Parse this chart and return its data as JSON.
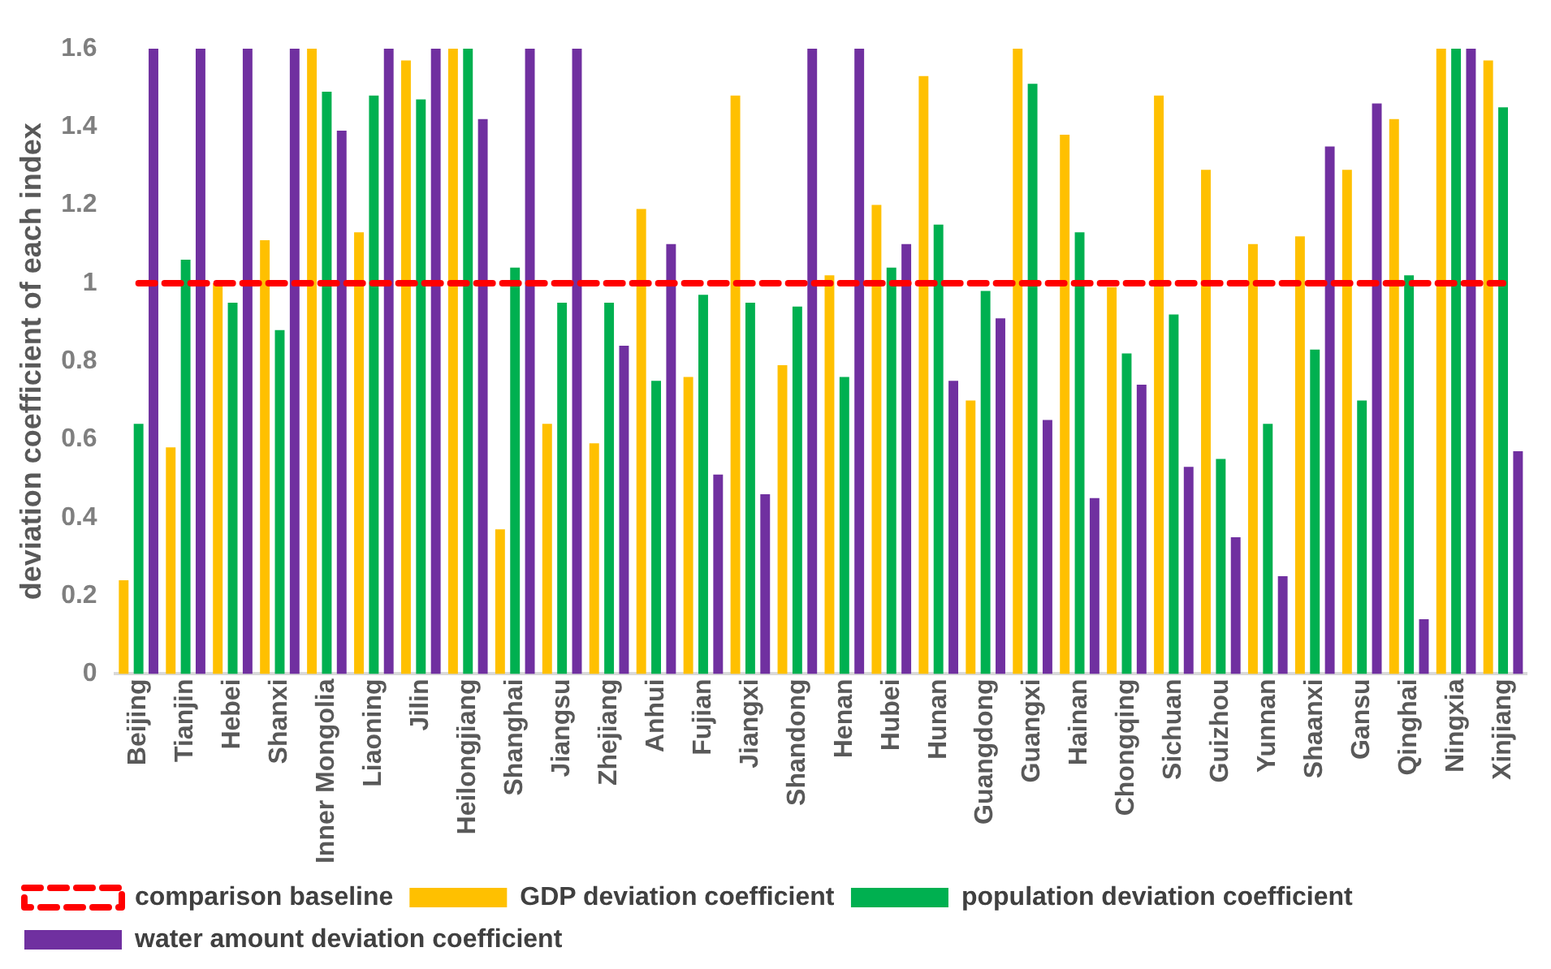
{
  "chart_data": {
    "type": "bar",
    "ylabel": "deviation coefficient of each index",
    "categories": [
      "Beijing",
      "Tianjin",
      "Hebei",
      "Shanxi",
      "Inner Mongolia",
      "Liaoning",
      "Jilin",
      "Heilongjiang",
      "Shanghai",
      "Jiangsu",
      "Zhejiang",
      "Anhui",
      "Fujian",
      "Jiangxi",
      "Shandong",
      "Henan",
      "Hubei",
      "Hunan",
      "Guangdong",
      "Guangxi",
      "Hainan",
      "Chongqing",
      "Sichuan",
      "Guizhou",
      "Yunnan",
      "Shaanxi",
      "Gansu",
      "Qinghai",
      "Ningxia",
      "Xinjiang"
    ],
    "series": [
      {
        "name": "GDP deviation coefficient",
        "color": "#ffc000",
        "values": [
          0.24,
          0.58,
          1.0,
          1.11,
          1.6,
          1.13,
          1.57,
          1.6,
          0.37,
          0.64,
          0.59,
          1.19,
          0.76,
          1.48,
          0.79,
          1.02,
          1.2,
          1.53,
          0.7,
          1.6,
          1.38,
          0.99,
          1.48,
          1.29,
          1.1,
          1.12,
          1.29,
          1.42,
          1.6,
          1.57
        ]
      },
      {
        "name": "population deviation coefficient",
        "color": "#00b050",
        "values": [
          0.64,
          1.06,
          0.95,
          0.88,
          1.49,
          1.48,
          1.47,
          1.6,
          1.04,
          0.95,
          0.95,
          0.75,
          0.97,
          0.95,
          0.94,
          0.76,
          1.04,
          1.15,
          0.98,
          1.51,
          1.13,
          0.82,
          0.92,
          0.55,
          0.64,
          0.83,
          0.7,
          1.02,
          1.6,
          1.45
        ]
      },
      {
        "name": "water amount deviation coefficient",
        "color": "#7030a0",
        "values": [
          1.6,
          1.6,
          1.6,
          1.6,
          1.39,
          1.6,
          1.6,
          1.42,
          1.6,
          1.6,
          0.84,
          1.1,
          0.51,
          0.46,
          1.6,
          1.6,
          1.1,
          0.75,
          0.91,
          0.65,
          0.45,
          0.74,
          0.53,
          0.35,
          0.25,
          1.35,
          1.46,
          0.14,
          1.6,
          0.57
        ]
      },
      {
        "type": "line",
        "name": "comparison baseline",
        "color": "#ff0000",
        "values": [
          1,
          1,
          1,
          1,
          1,
          1,
          1,
          1,
          1,
          1,
          1,
          1,
          1,
          1,
          1,
          1,
          1,
          1,
          1,
          1,
          1,
          1,
          1,
          1,
          1,
          1,
          1,
          1,
          1,
          1
        ]
      }
    ],
    "line_style": "dashed",
    "ylim": [
      0,
      1.6
    ],
    "yticks": [
      0,
      0.2,
      0.4,
      0.6,
      0.8,
      1,
      1.2,
      1.4,
      1.6
    ],
    "grid": false,
    "legend": "bottom"
  }
}
